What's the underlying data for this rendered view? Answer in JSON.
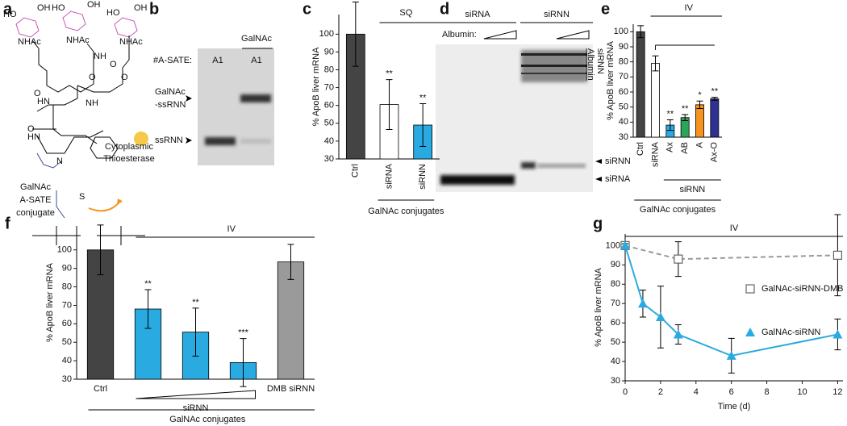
{
  "panel_labels": [
    "a",
    "b",
    "c",
    "d",
    "e",
    "f",
    "g"
  ],
  "panel_a": {
    "conjugate_label": [
      "GalNAc",
      "A-SATE",
      "conjugate"
    ],
    "enzyme_label": [
      "Cytoplasmic",
      "Thioesterase"
    ],
    "atoms": [
      "NHAc",
      "NHAc",
      "NHAc",
      "HO",
      "OH",
      "HO",
      "OH",
      "HO",
      "OH",
      "O",
      "O",
      "O",
      "O",
      "O",
      "HN",
      "NH",
      "NH",
      "HN",
      "N",
      "S"
    ]
  },
  "panel_b": {
    "row_label": "#A-SATE:",
    "group": "GalNAc",
    "lanes": [
      "A1",
      "A1"
    ],
    "band_labels": [
      "GalNAc",
      "-ssRNN",
      "ssRNN"
    ]
  },
  "panel_d": {
    "groups": [
      "siRNA",
      "siRNN"
    ],
    "condition": "Albumin:",
    "right_labels": [
      "siRNN",
      "Albumin",
      "siRNN",
      "siRNA"
    ]
  },
  "chart_data": [
    {
      "type": "bar",
      "ylabel": "% ApoB liver mRNA",
      "categories": [
        "Ctrl",
        "siRNA",
        "siRNN"
      ],
      "values": [
        100,
        60.5,
        49
      ],
      "errors": [
        18,
        14,
        12
      ],
      "colors": [
        "#444444",
        "#ffffff",
        "#29abe2"
      ],
      "significance": [
        null,
        "**",
        "**"
      ],
      "route": "SQ",
      "conjugate": "GalNAc conjugates",
      "ylim": [
        30,
        111
      ],
      "yticks": [
        30,
        40,
        50,
        60,
        70,
        80,
        90,
        100
      ]
    },
    {
      "type": "bar",
      "ylabel": "% ApoB liver mRNA",
      "categories": [
        "Ctrl",
        "siRNA",
        "Ax",
        "AB",
        "A",
        "Ax-O"
      ],
      "values": [
        100,
        79,
        38,
        43,
        51.5,
        55.5
      ],
      "errors": [
        4,
        5,
        3.5,
        2,
        2.5,
        1
      ],
      "colors": [
        "#444444",
        "#ffffff",
        "#29abe2",
        "#2aa55a",
        "#f7941d",
        "#2e3192"
      ],
      "significance": [
        null,
        null,
        "**",
        "**",
        "*",
        "**"
      ],
      "route": "IV",
      "subgroup": "siRNN",
      "conjugate": "GalNAc conjugates",
      "ylim": [
        30,
        105
      ],
      "yticks": [
        30,
        40,
        50,
        60,
        70,
        80,
        90,
        100
      ]
    },
    {
      "type": "bar",
      "ylabel": "% ApoB liver mRNA",
      "categories": [
        "Ctrl",
        null,
        null,
        null,
        "DMB siRNN"
      ],
      "values": [
        100,
        68,
        55.5,
        39,
        93.5
      ],
      "errors": [
        13.5,
        10.5,
        13,
        13,
        9.5
      ],
      "colors": [
        "#444444",
        "#29abe2",
        "#29abe2",
        "#29abe2",
        "#9a9a9a"
      ],
      "significance": [
        null,
        "**",
        "**",
        "***",
        null
      ],
      "route": "IV",
      "subgroup": "siRNN",
      "conjugate": "GalNAc conjugates",
      "ylim": [
        30,
        113
      ],
      "yticks": [
        30,
        40,
        50,
        60,
        70,
        80,
        90,
        100
      ]
    },
    {
      "type": "line",
      "ylabel": "% ApoB liver mRNA",
      "xlabel": "Time (d)",
      "route": "IV",
      "series": [
        {
          "name": "GalNAc-siRNN-DMB",
          "color": "#999999",
          "marker": "square",
          "dashed": true,
          "x": [
            0,
            3,
            12
          ],
          "values": [
            100,
            93,
            95
          ],
          "errors": [
            1,
            9,
            21
          ]
        },
        {
          "name": "GalNAc-siRNN",
          "color": "#29abe2",
          "marker": "triangle",
          "dashed": false,
          "x": [
            0,
            1,
            2,
            3,
            6,
            12
          ],
          "values": [
            100,
            70,
            63,
            54,
            43,
            54
          ],
          "errors": [
            1,
            7,
            16,
            5,
            9,
            8
          ]
        }
      ],
      "xlim": [
        0,
        12.3
      ],
      "xticks": [
        0,
        2,
        4,
        6,
        8,
        10,
        12
      ],
      "ylim": [
        30,
        106
      ],
      "yticks": [
        30,
        40,
        50,
        60,
        70,
        80,
        90,
        100
      ]
    }
  ]
}
